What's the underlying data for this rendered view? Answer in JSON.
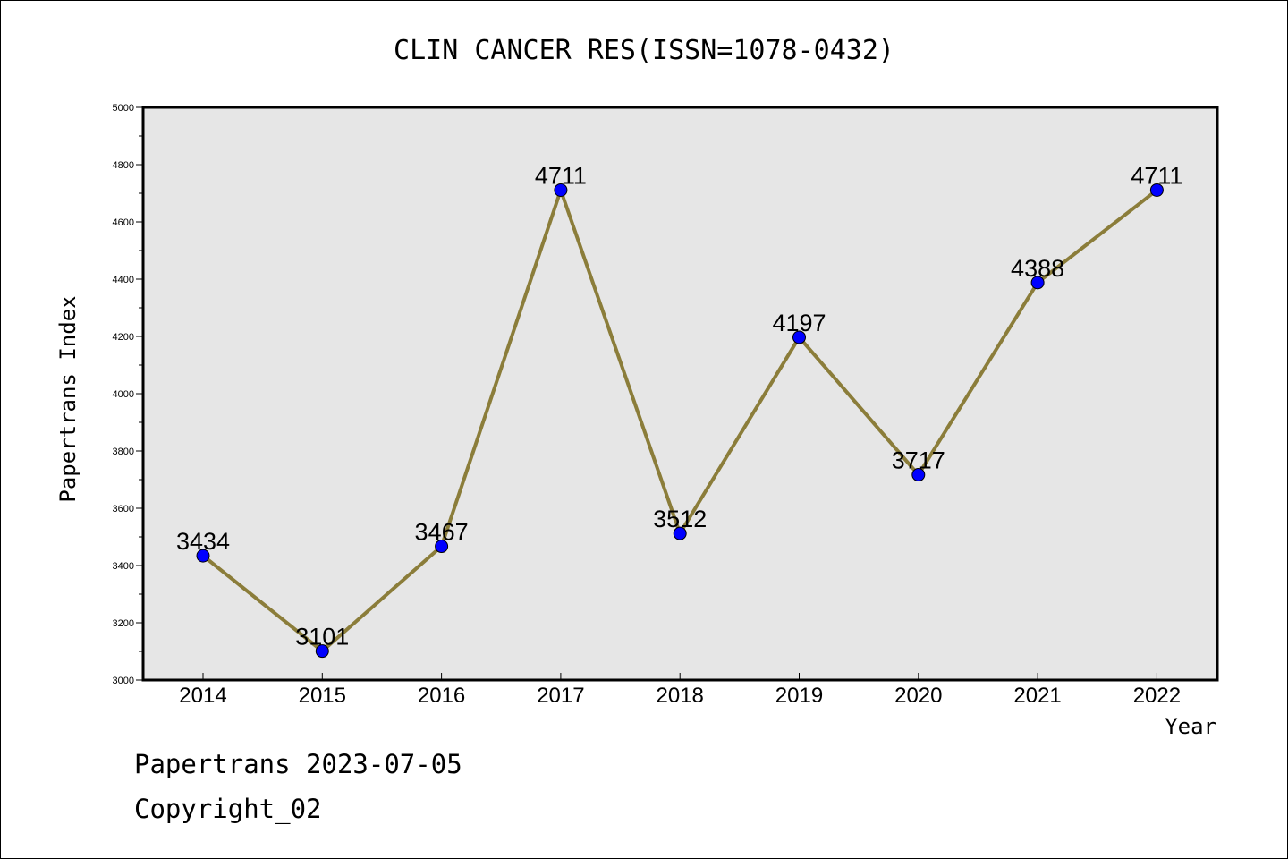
{
  "chart_data": {
    "type": "line",
    "title": "CLIN CANCER RES(ISSN=1078-0432)",
    "xlabel": "Year",
    "ylabel": "Papertrans Index",
    "categories": [
      "2014",
      "2015",
      "2016",
      "2017",
      "2018",
      "2019",
      "2020",
      "2021",
      "2022"
    ],
    "values": [
      3434,
      3101,
      3467,
      4711,
      3512,
      4197,
      3717,
      4388,
      4711
    ],
    "data_labels": [
      "3434",
      "3101",
      "3467",
      "4711",
      "3512",
      "4197",
      "3717",
      "4388",
      "4711"
    ],
    "ylim": [
      3000,
      5000
    ],
    "yticks": [
      3000,
      3200,
      3400,
      3600,
      3800,
      4000,
      4200,
      4400,
      4600,
      4800,
      5000
    ],
    "grid": false,
    "legend": "none",
    "colors": {
      "line": "#8B7D3A",
      "marker": "#0000FF",
      "plot_background": "#E6E6E6"
    }
  },
  "footer": {
    "line1": "Papertrans 2023-07-05",
    "line2": "Copyright_02"
  }
}
